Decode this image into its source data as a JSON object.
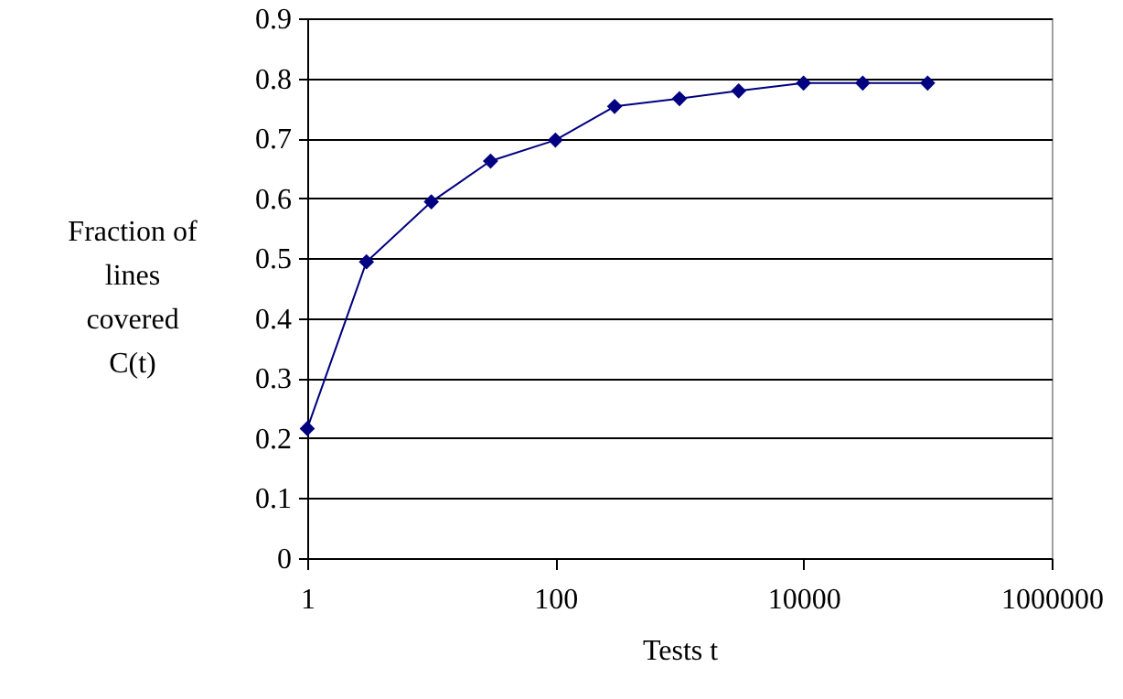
{
  "chart_data": {
    "type": "line",
    "xlabel": "Tests t",
    "ylabel": "Fraction of\nlines\ncovered\nC(t)",
    "x": [
      1,
      3,
      10,
      30,
      100,
      300,
      1000,
      3000,
      10000,
      30000,
      100000
    ],
    "series": [
      {
        "color": "#000080",
        "values": [
          0.216,
          0.494,
          0.594,
          0.662,
          0.697,
          0.753,
          0.766,
          0.779,
          0.792,
          0.792,
          0.792
        ]
      }
    ],
    "log": "x",
    "xlim": [
      1,
      1000000
    ],
    "xticks": [
      1,
      100,
      10000,
      1000000
    ],
    "ylim": [
      0,
      0.9
    ],
    "yticks": [
      0,
      0.1,
      0.2,
      0.3,
      0.4,
      0.5,
      0.6,
      0.7,
      0.8,
      0.9
    ],
    "grid": "y",
    "marker": "diamond",
    "line_style": "solid"
  }
}
